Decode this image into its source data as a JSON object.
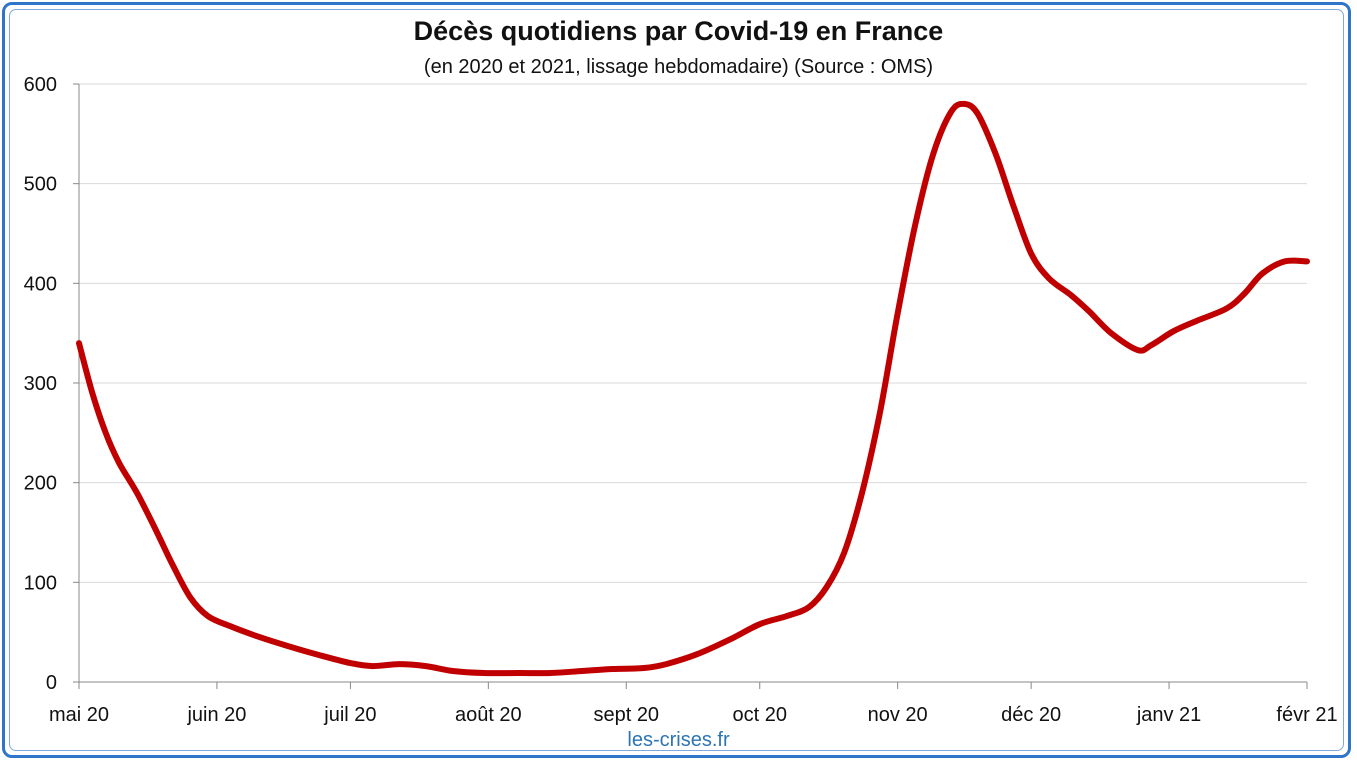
{
  "title": "Décès quotidiens par Covid-19 en France",
  "subtitle": "(en 2020 et 2021, lissage hebdomadaire) (Source : OMS)",
  "source_label": "les-crises.fr",
  "colors": {
    "line": "#c00000",
    "frame": "#2f75c9",
    "grid": "#d9d9d9",
    "source_text": "#2e74b5"
  },
  "chart_data": {
    "type": "line",
    "title": "Décès quotidiens par Covid-19 en France",
    "subtitle": "(en 2020 et 2021, lissage hebdomadaire) (Source : OMS)",
    "xlabel": "",
    "ylabel": "",
    "ylim": [
      0,
      600
    ],
    "yticks": [
      0,
      100,
      200,
      300,
      400,
      500,
      600
    ],
    "xlim": [
      "2020-05-01",
      "2021-02-01"
    ],
    "xticks": [
      {
        "date": "2020-05-01",
        "label": "mai 20"
      },
      {
        "date": "2020-06-01",
        "label": "juin 20"
      },
      {
        "date": "2020-07-01",
        "label": "juil 20"
      },
      {
        "date": "2020-08-01",
        "label": "août 20"
      },
      {
        "date": "2020-09-01",
        "label": "sept 20"
      },
      {
        "date": "2020-10-01",
        "label": "oct 20"
      },
      {
        "date": "2020-11-01",
        "label": "nov 20"
      },
      {
        "date": "2020-12-01",
        "label": "déc 20"
      },
      {
        "date": "2021-01-01",
        "label": "janv 21"
      },
      {
        "date": "2021-02-01",
        "label": "févr 21"
      }
    ],
    "grid": true,
    "legend": "none",
    "series": [
      {
        "color": "#c00000",
        "points": [
          [
            "2020-05-01",
            340
          ],
          [
            "2020-05-04",
            290
          ],
          [
            "2020-05-07",
            250
          ],
          [
            "2020-05-10",
            220
          ],
          [
            "2020-05-14",
            190
          ],
          [
            "2020-05-18",
            155
          ],
          [
            "2020-05-22",
            118
          ],
          [
            "2020-05-26",
            85
          ],
          [
            "2020-05-30",
            66
          ],
          [
            "2020-06-04",
            56
          ],
          [
            "2020-06-10",
            46
          ],
          [
            "2020-06-17",
            36
          ],
          [
            "2020-06-24",
            27
          ],
          [
            "2020-07-01",
            19
          ],
          [
            "2020-07-06",
            16
          ],
          [
            "2020-07-12",
            18
          ],
          [
            "2020-07-18",
            16
          ],
          [
            "2020-07-24",
            11
          ],
          [
            "2020-07-31",
            9
          ],
          [
            "2020-08-08",
            9
          ],
          [
            "2020-08-15",
            9
          ],
          [
            "2020-08-22",
            11
          ],
          [
            "2020-08-29",
            13
          ],
          [
            "2020-09-05",
            14
          ],
          [
            "2020-09-10",
            18
          ],
          [
            "2020-09-17",
            28
          ],
          [
            "2020-09-24",
            42
          ],
          [
            "2020-10-01",
            58
          ],
          [
            "2020-10-07",
            66
          ],
          [
            "2020-10-12",
            75
          ],
          [
            "2020-10-16",
            95
          ],
          [
            "2020-10-20",
            130
          ],
          [
            "2020-10-24",
            190
          ],
          [
            "2020-10-28",
            270
          ],
          [
            "2020-11-01",
            370
          ],
          [
            "2020-11-05",
            460
          ],
          [
            "2020-11-09",
            530
          ],
          [
            "2020-11-13",
            572
          ],
          [
            "2020-11-16",
            580
          ],
          [
            "2020-11-19",
            570
          ],
          [
            "2020-11-23",
            530
          ],
          [
            "2020-11-27",
            478
          ],
          [
            "2020-12-01",
            430
          ],
          [
            "2020-12-05",
            405
          ],
          [
            "2020-12-10",
            388
          ],
          [
            "2020-12-14",
            372
          ],
          [
            "2020-12-19",
            350
          ],
          [
            "2020-12-25",
            333
          ],
          [
            "2020-12-28",
            338
          ],
          [
            "2021-01-02",
            352
          ],
          [
            "2021-01-07",
            362
          ],
          [
            "2021-01-14",
            375
          ],
          [
            "2021-01-18",
            390
          ],
          [
            "2021-01-22",
            410
          ],
          [
            "2021-01-27",
            422
          ],
          [
            "2021-02-01",
            422
          ]
        ]
      }
    ]
  }
}
